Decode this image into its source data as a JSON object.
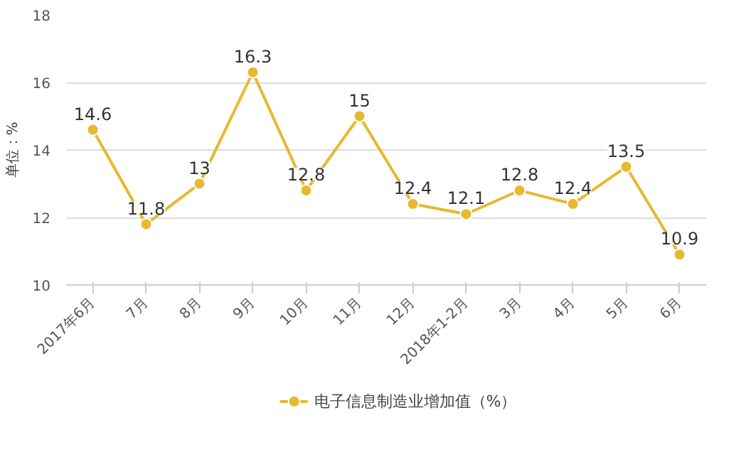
{
  "chart_data": {
    "type": "line",
    "ylabel": "单位：%",
    "categories": [
      "2017年6月",
      "7月",
      "8月",
      "9月",
      "10月",
      "11月",
      "12月",
      "2018年1-2月",
      "3月",
      "4月",
      "5月",
      "6月"
    ],
    "series": [
      {
        "name": "电子信息制造业增加值（%）",
        "color": "#e8b830",
        "values": [
          14.6,
          11.8,
          13,
          16.3,
          12.8,
          15,
          12.4,
          12.1,
          12.8,
          12.4,
          13.5,
          10.9
        ]
      }
    ],
    "ylim": [
      10,
      18
    ],
    "yticks": [
      10,
      12,
      14,
      16,
      18
    ],
    "grid": "y",
    "legend": "bottom",
    "marker": "circle",
    "line_style": "solid",
    "data_labels": true
  }
}
